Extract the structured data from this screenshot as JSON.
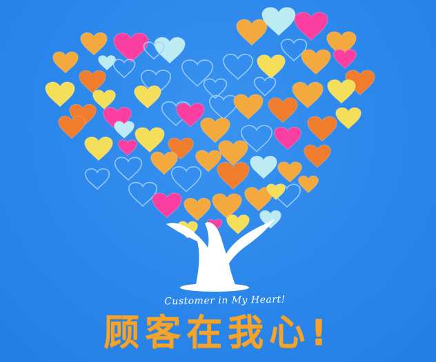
{
  "poster": {
    "english_text": "Customer in My Heart!",
    "chinese_text": "顾客在我心!"
  },
  "colors": {
    "background": "#2a86ea",
    "heart_fill": [
      "#f3a93d",
      "#f07c2e",
      "#fb3fa0",
      "#f5df5a",
      "#bcebf3"
    ],
    "heart_outline": "#9fd0ff",
    "tree": "#ffffff",
    "text_cn": "#f4a42d"
  }
}
